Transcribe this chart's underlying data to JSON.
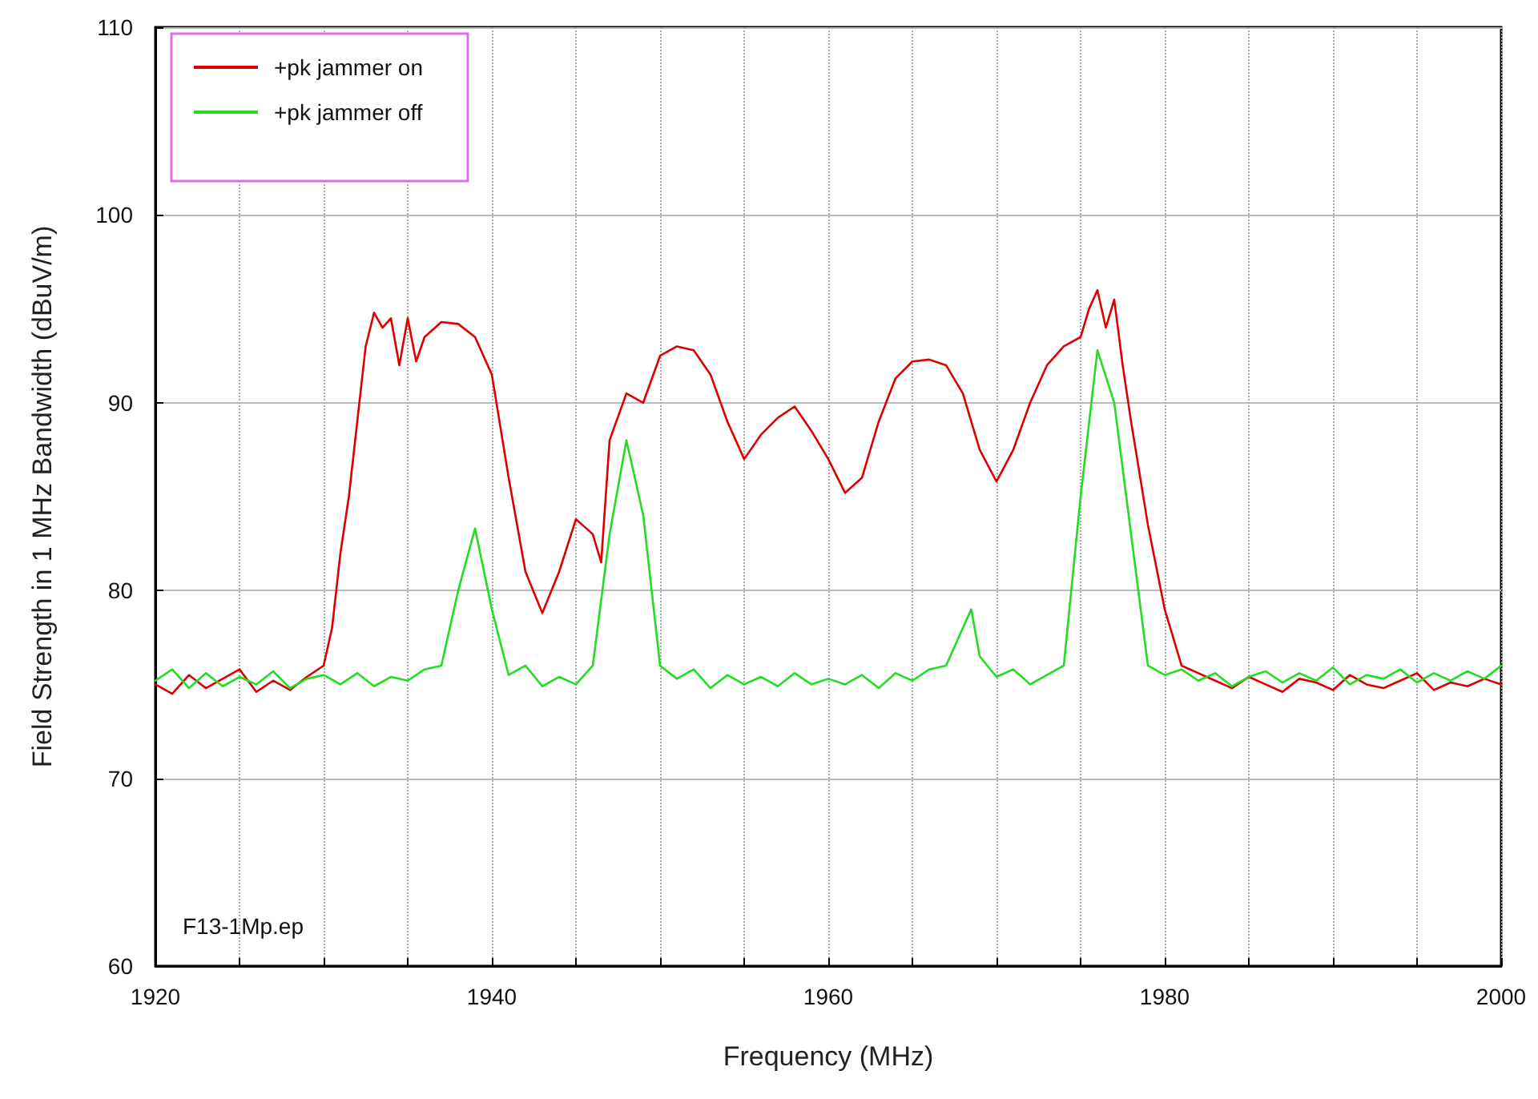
{
  "chart_data": {
    "type": "line",
    "xlabel": "Frequency (MHz)",
    "ylabel": "Field Strength in 1 MHz Bandwidth (dBuV/m)",
    "annotations": [
      "F13-1Mp.ep"
    ],
    "xlim": [
      1920,
      2000
    ],
    "xticks": [
      1920,
      {
        "value": 1925,
        "label": null
      },
      {
        "value": 1930,
        "label": null
      },
      {
        "value": 1935,
        "label": null
      },
      1940,
      {
        "value": 1945,
        "label": null
      },
      {
        "value": 1950,
        "label": null
      },
      {
        "value": 1955,
        "label": null
      },
      1960,
      {
        "value": 1965,
        "label": null
      },
      {
        "value": 1970,
        "label": null
      },
      {
        "value": 1975,
        "label": null
      },
      1980,
      {
        "value": 1985,
        "label": null
      },
      {
        "value": 1990,
        "label": null
      },
      {
        "value": 1995,
        "label": null
      },
      2000
    ],
    "ylim": [
      60,
      110
    ],
    "yticks": [
      60,
      70,
      80,
      90,
      100,
      110
    ],
    "grid": true,
    "legend": "top left",
    "marker": "none",
    "line_style": "solid",
    "series": [
      {
        "name": "+pk jammer on",
        "color": "#dd0000",
        "x": [
          1920,
          1921,
          1922,
          1923,
          1924,
          1925,
          1926,
          1927,
          1928,
          1929,
          1930,
          1930.5,
          1931,
          1931.5,
          1932,
          1932.5,
          1933,
          1933.5,
          1934,
          1934.5,
          1935,
          1935.5,
          1936,
          1937,
          1938,
          1939,
          1940,
          1941,
          1942,
          1943,
          1944,
          1945,
          1946,
          1946.5,
          1947,
          1948,
          1949,
          1950,
          1951,
          1952,
          1953,
          1954,
          1955,
          1956,
          1957,
          1958,
          1959,
          1960,
          1961,
          1962,
          1963,
          1964,
          1965,
          1966,
          1967,
          1968,
          1969,
          1970,
          1971,
          1972,
          1973,
          1974,
          1975,
          1975.5,
          1976,
          1976.5,
          1977,
          1977.5,
          1978,
          1979,
          1980,
          1981,
          1982,
          1983,
          1984,
          1985,
          1986,
          1987,
          1988,
          1989,
          1990,
          1991,
          1992,
          1993,
          1994,
          1995,
          1996,
          1997,
          1998,
          1999,
          2000
        ],
        "values": [
          75,
          74.5,
          75.5,
          74.8,
          75.3,
          75.8,
          74.6,
          75.2,
          74.7,
          75.4,
          76,
          78,
          82,
          85,
          89,
          93,
          94.8,
          94,
          94.5,
          92,
          94.5,
          92.2,
          93.5,
          94.3,
          94.2,
          93.5,
          91.5,
          86,
          81,
          78.8,
          81,
          83.8,
          83,
          81.5,
          88,
          90.5,
          90,
          92.5,
          93,
          92.8,
          91.5,
          89,
          87,
          88.3,
          89.2,
          89.8,
          88.5,
          87,
          85.2,
          86,
          89,
          91.3,
          92.2,
          92.3,
          92,
          90.5,
          87.5,
          85.8,
          87.5,
          90,
          92,
          93,
          93.5,
          95,
          96,
          94,
          95.5,
          92,
          89,
          83.5,
          79,
          76,
          75.6,
          75.2,
          74.8,
          75.4,
          75,
          74.6,
          75.3,
          75.1,
          74.7,
          75.5,
          75,
          74.8,
          75.2,
          75.6,
          74.7,
          75.1,
          74.9,
          75.3,
          75
        ]
      },
      {
        "name": "+pk jammer off",
        "color": "#22dd22",
        "x": [
          1920,
          1921,
          1922,
          1923,
          1924,
          1925,
          1926,
          1927,
          1928,
          1929,
          1930,
          1931,
          1932,
          1933,
          1934,
          1935,
          1936,
          1937,
          1938,
          1939,
          1940,
          1941,
          1942,
          1943,
          1944,
          1945,
          1946,
          1947,
          1948,
          1949,
          1950,
          1951,
          1952,
          1953,
          1954,
          1955,
          1956,
          1957,
          1958,
          1959,
          1960,
          1961,
          1962,
          1963,
          1964,
          1965,
          1966,
          1967,
          1968,
          1968.5,
          1969,
          1970,
          1971,
          1972,
          1973,
          1974,
          1975,
          1976,
          1977,
          1978,
          1979,
          1980,
          1981,
          1982,
          1983,
          1984,
          1985,
          1986,
          1987,
          1988,
          1989,
          1990,
          1991,
          1992,
          1993,
          1994,
          1995,
          1996,
          1997,
          1998,
          1999,
          2000
        ],
        "values": [
          75.2,
          75.8,
          74.8,
          75.6,
          74.9,
          75.4,
          75,
          75.7,
          74.8,
          75.3,
          75.5,
          75,
          75.6,
          74.9,
          75.4,
          75.2,
          75.8,
          76,
          80,
          83.3,
          79,
          75.5,
          76,
          74.9,
          75.4,
          75,
          76,
          83,
          88,
          84,
          76,
          75.3,
          75.8,
          74.8,
          75.5,
          75,
          75.4,
          74.9,
          75.6,
          75,
          75.3,
          75,
          75.5,
          74.8,
          75.6,
          75.2,
          75.8,
          76,
          78,
          79,
          76.5,
          75.4,
          75.8,
          75,
          75.5,
          76,
          85,
          92.8,
          90,
          83,
          76,
          75.5,
          75.8,
          75.2,
          75.6,
          74.9,
          75.4,
          75.7,
          75.1,
          75.6,
          75.2,
          75.9,
          75,
          75.5,
          75.3,
          75.8,
          75.1,
          75.6,
          75.2,
          75.7,
          75.3,
          76
        ]
      }
    ]
  }
}
